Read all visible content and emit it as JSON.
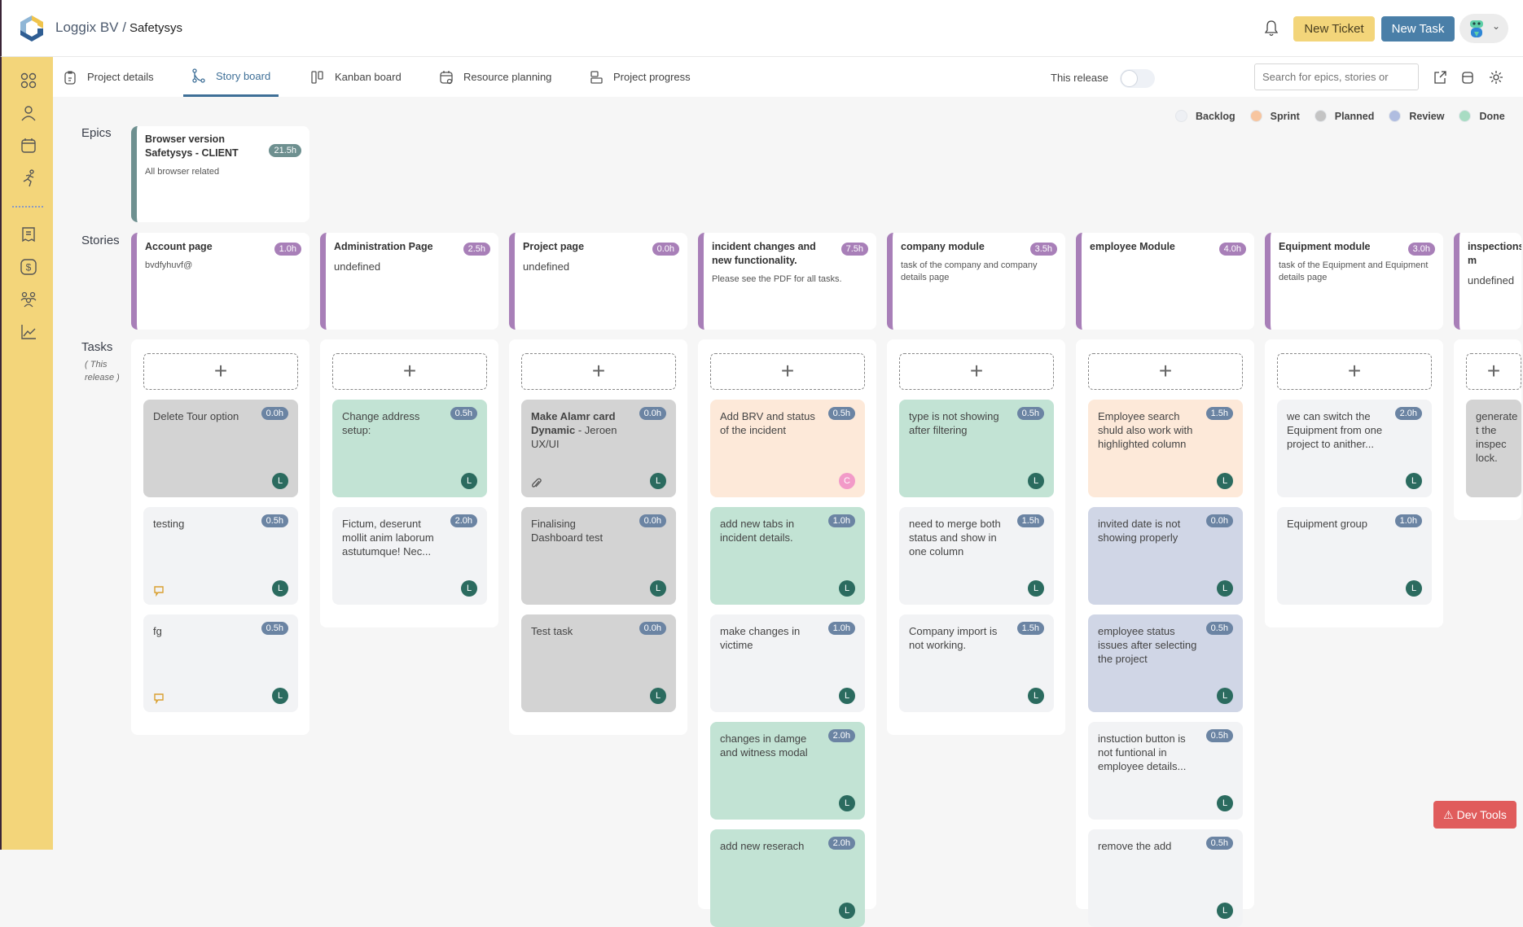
{
  "header": {
    "org": "Loggix BV /",
    "project": "Safetysys",
    "new_ticket": "New Ticket",
    "new_task": "New Task"
  },
  "sidebar": {
    "items": [
      "dashboard-icon",
      "user-icon",
      "calendar-icon",
      "running-icon",
      "receipt-icon",
      "dollar-icon",
      "team-icon",
      "chart-icon"
    ]
  },
  "tabs": [
    {
      "label": "Project details"
    },
    {
      "label": "Story board",
      "active": true
    },
    {
      "label": "Kanban board"
    },
    {
      "label": "Resource planning"
    },
    {
      "label": "Project progress"
    }
  ],
  "toolbar": {
    "release_label": "This release",
    "release_on": false,
    "search_placeholder": "Search for epics, stories or"
  },
  "legend": [
    {
      "label": "Backlog",
      "color": "#eef0f4"
    },
    {
      "label": "Sprint",
      "color": "#f7c59f"
    },
    {
      "label": "Planned",
      "color": "#c4c4c4"
    },
    {
      "label": "Review",
      "color": "#b0bde0"
    },
    {
      "label": "Done",
      "color": "#a8dcc3"
    }
  ],
  "status_colors": {
    "backlog": "#f2f3f5",
    "sprint": "#fde9d9",
    "planned": "#d3d3d3",
    "review": "#d0d6e6",
    "done": "#c2e3d4"
  },
  "labels": {
    "epics": "Epics",
    "stories": "Stories",
    "tasks": "Tasks",
    "tasks_sub1": "( This",
    "tasks_sub2": "release )",
    "add": "+"
  },
  "epic": {
    "title": "Browser version Safetysys - CLIENT",
    "desc": "All browser related",
    "hours": "21.5h"
  },
  "columns": [
    {
      "story": {
        "title": "Account page",
        "desc": "bvdfyhuvf@",
        "hours": "1.0h"
      },
      "tasks": [
        {
          "text": "Delete Tour option",
          "hours": "0.0h",
          "status": "planned",
          "avatar": "L"
        },
        {
          "text": "testing",
          "hours": "0.5h",
          "status": "backlog",
          "avatar": "L",
          "icon": "comment"
        },
        {
          "text": "fg",
          "hours": "0.5h",
          "status": "backlog",
          "avatar": "L",
          "icon": "comment"
        }
      ]
    },
    {
      "story": {
        "title": "Administration Page",
        "undef": "undefined",
        "hours": "2.5h"
      },
      "tasks": [
        {
          "text": "Change address setup:",
          "hours": "0.5h",
          "status": "done",
          "avatar": "L"
        },
        {
          "text": "Fictum, deserunt mollit anim laborum astutumque! Nec...",
          "hours": "2.0h",
          "status": "backlog",
          "avatar": "L"
        }
      ]
    },
    {
      "story": {
        "title": "Project page",
        "undef": "undefined",
        "hours": "0.0h"
      },
      "tasks": [
        {
          "bold": "Make Alamr card Dynamic",
          "text": " - Jeroen UX/UI",
          "hours": "0.0h",
          "status": "planned",
          "avatar": "L",
          "icon": "paperclip"
        },
        {
          "text": "Finalising Dashboard test",
          "hours": "0.0h",
          "status": "planned",
          "avatar": "L"
        },
        {
          "text": "Test task",
          "hours": "0.0h",
          "status": "planned",
          "avatar": "L"
        }
      ]
    },
    {
      "story": {
        "title": "incident changes and new functionality.",
        "desc": "Please see the PDF for all tasks.",
        "hours": "7.5h"
      },
      "tasks": [
        {
          "text": "Add BRV and status of the incident",
          "hours": "0.5h",
          "status": "sprint",
          "avatar": "C"
        },
        {
          "text": "add new tabs in incident details.",
          "hours": "1.0h",
          "status": "done",
          "avatar": "L"
        },
        {
          "text": "make changes in victime",
          "hours": "1.0h",
          "status": "backlog",
          "avatar": "L"
        },
        {
          "text": "changes in damge and witness modal",
          "hours": "2.0h",
          "status": "done",
          "avatar": "L"
        },
        {
          "text": "add new reserach",
          "hours": "2.0h",
          "status": "done",
          "avatar": "L"
        }
      ]
    },
    {
      "story": {
        "title": "company module",
        "desc": "task of the company and company details page",
        "hours": "3.5h"
      },
      "tasks": [
        {
          "text": "type is not showing after filtering",
          "hours": "0.5h",
          "status": "done",
          "avatar": "L"
        },
        {
          "text": "need to merge both status and show in one column",
          "hours": "1.5h",
          "status": "backlog",
          "avatar": "L"
        },
        {
          "text": "Company import is not working.",
          "hours": "1.5h",
          "status": "backlog",
          "avatar": "L"
        }
      ]
    },
    {
      "story": {
        "title": "employee Module",
        "hours": "4.0h"
      },
      "tasks": [
        {
          "text": "Employee search shuld also work with highlighted column",
          "hours": "1.5h",
          "status": "sprint",
          "avatar": "L"
        },
        {
          "text": "invited date is not showing properly",
          "hours": "0.0h",
          "status": "review",
          "avatar": "L"
        },
        {
          "text": "employee status issues after selecting the project",
          "hours": "0.5h",
          "status": "review",
          "avatar": "L"
        },
        {
          "text": "instuction button is not funtional in employee details...",
          "hours": "0.5h",
          "status": "backlog",
          "avatar": "L"
        },
        {
          "text": "remove the add",
          "hours": "0.5h",
          "status": "backlog",
          "avatar": "L"
        }
      ]
    },
    {
      "story": {
        "title": "Equipment module",
        "desc": "task of the Equipment and Equipment details page",
        "hours": "3.0h"
      },
      "tasks": [
        {
          "text": "we can switch the Equipment from one project to anither...",
          "hours": "2.0h",
          "status": "backlog",
          "avatar": "L"
        },
        {
          "text": "Equipment group",
          "hours": "1.0h",
          "status": "backlog",
          "avatar": "L"
        }
      ]
    },
    {
      "story": {
        "title": "inspections m",
        "undef": "undefined"
      },
      "tasks": [
        {
          "text": "generate t the inspec lock.",
          "status": "planned"
        }
      ]
    }
  ],
  "dev_tools": "Dev Tools"
}
